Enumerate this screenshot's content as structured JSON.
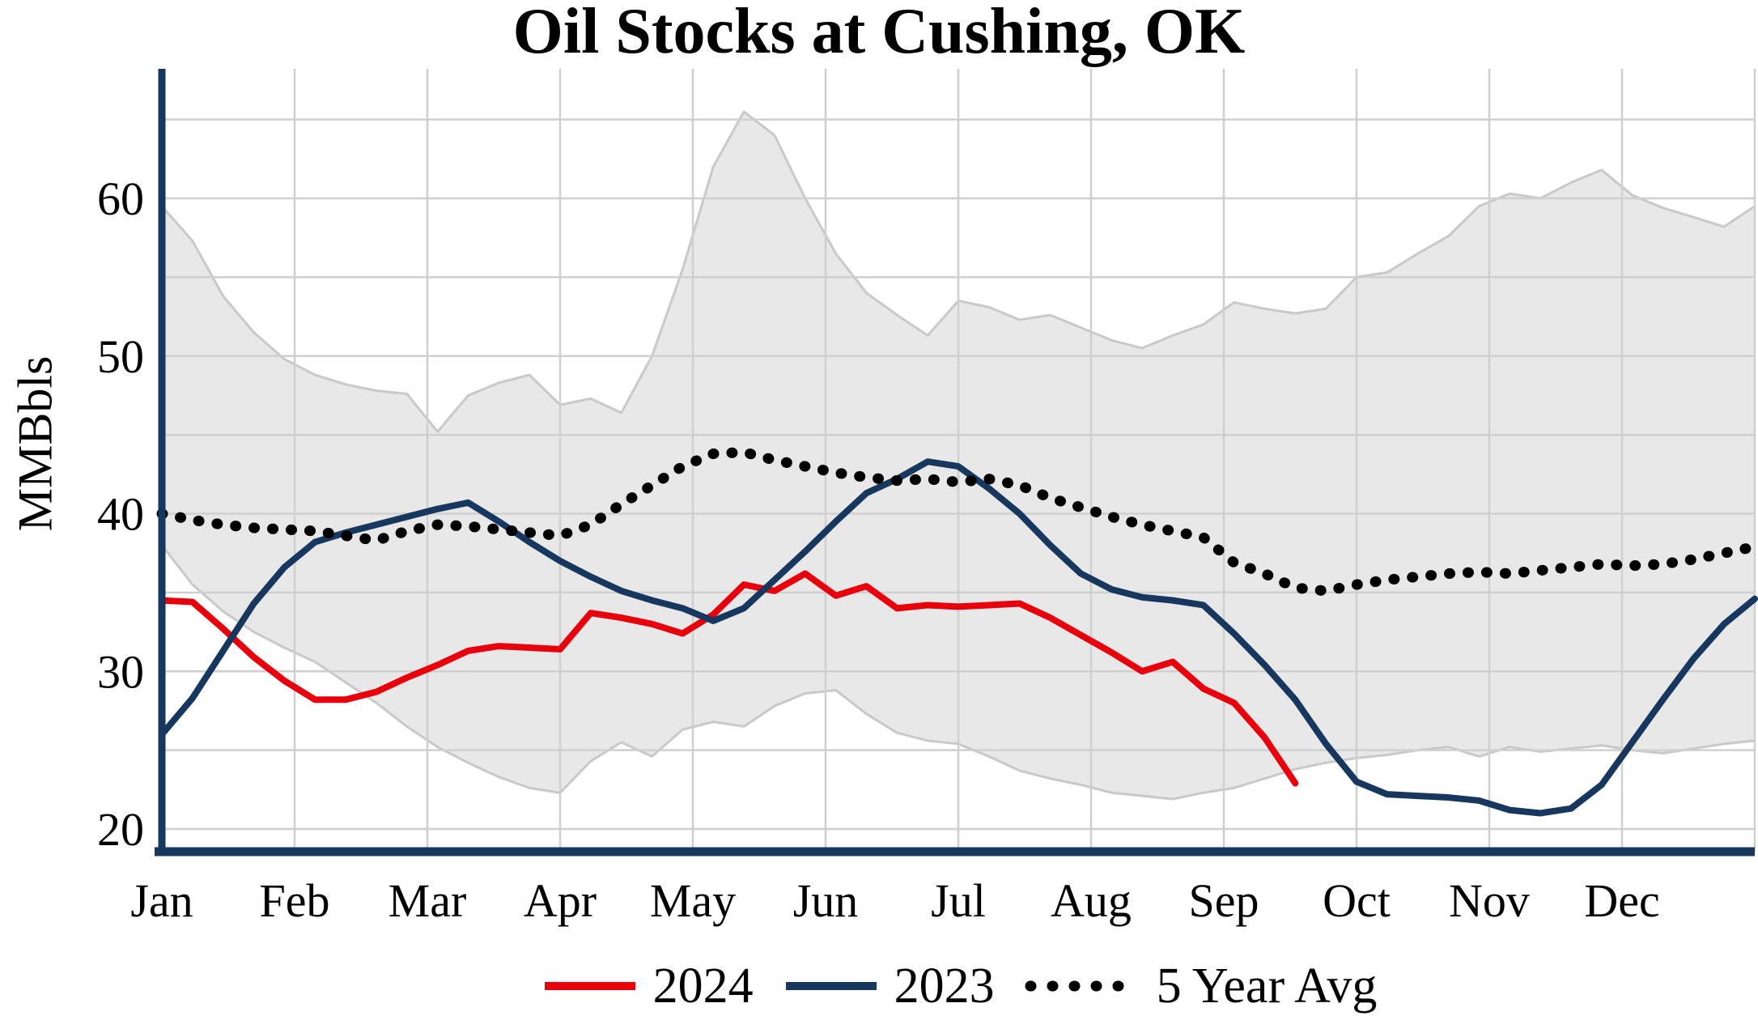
{
  "chart_data": {
    "type": "line",
    "title": "Oil Stocks at Cushing, OK",
    "ylabel": "MMBbls",
    "xlabel": "",
    "x_resolution": "weekly (52 weeks per year)",
    "x_ticklabels": [
      "Jan",
      "Feb",
      "Mar",
      "Apr",
      "May",
      "Jun",
      "Jul",
      "Aug",
      "Sep",
      "Oct",
      "Nov",
      "Dec"
    ],
    "yticks": [
      20,
      30,
      40,
      50,
      60
    ],
    "y_gridlines": [
      20,
      25,
      30,
      35,
      40,
      45,
      50,
      55,
      60,
      65
    ],
    "ylim": [
      18.5,
      68.5
    ],
    "grid": true,
    "legend_position": "bottom-center",
    "axis_color": "#17375e",
    "band": {
      "color": "#e8e8e8",
      "edge_color": "#c9c9c9",
      "upper": [
        59.5,
        57.3,
        53.8,
        51.5,
        49.8,
        48.8,
        48.2,
        47.8,
        47.6,
        45.2,
        47.5,
        48.3,
        48.8,
        46.9,
        47.3,
        46.4,
        50.0,
        55.5,
        62.0,
        65.5,
        64.0,
        60.0,
        56.5,
        54.0,
        52.6,
        51.3,
        53.5,
        53.1,
        52.3,
        52.6,
        51.8,
        51.0,
        50.5,
        51.3,
        52.0,
        53.4,
        53.0,
        52.7,
        53.0,
        55.0,
        55.3,
        56.5,
        57.6,
        59.5,
        60.3,
        60.0,
        61.0,
        61.8,
        60.2,
        59.4,
        58.8,
        58.2,
        59.5
      ],
      "lower": [
        38.0,
        35.5,
        33.8,
        32.5,
        31.5,
        30.6,
        29.3,
        28.0,
        26.5,
        25.2,
        24.2,
        23.3,
        22.6,
        22.3,
        24.3,
        25.5,
        24.6,
        26.3,
        26.8,
        26.5,
        27.8,
        28.6,
        28.8,
        27.3,
        26.1,
        25.6,
        25.4,
        24.6,
        23.7,
        23.2,
        22.8,
        22.3,
        22.1,
        21.9,
        22.3,
        22.6,
        23.2,
        23.8,
        24.2,
        24.5,
        24.7,
        25.0,
        25.2,
        24.6,
        25.2,
        24.9,
        25.1,
        25.3,
        25.0,
        24.8,
        25.1,
        25.4,
        25.6
      ]
    },
    "series": [
      {
        "name": "2024",
        "color": "#e8000d",
        "style": "solid",
        "values": [
          34.5,
          34.4,
          32.7,
          30.9,
          29.4,
          28.2,
          28.2,
          28.7,
          29.6,
          30.4,
          31.3,
          31.6,
          31.5,
          31.4,
          33.7,
          33.4,
          33.0,
          32.4,
          33.6,
          35.5,
          35.1,
          36.2,
          34.8,
          35.4,
          34.0,
          34.2,
          34.1,
          34.2,
          34.3,
          33.4,
          32.3,
          31.2,
          30.0,
          30.6,
          28.9,
          28.0,
          25.8,
          22.9
        ]
      },
      {
        "name": "2023",
        "color": "#17375e",
        "style": "solid",
        "values": [
          26.0,
          28.3,
          31.3,
          34.3,
          36.6,
          38.2,
          38.8,
          39.3,
          39.8,
          40.3,
          40.7,
          39.5,
          38.2,
          37.0,
          36.0,
          35.1,
          34.5,
          34.0,
          33.2,
          34.0,
          35.8,
          37.6,
          39.5,
          41.3,
          42.2,
          43.3,
          43.0,
          41.6,
          40.0,
          38.0,
          36.2,
          35.2,
          34.7,
          34.5,
          34.2,
          32.4,
          30.4,
          28.2,
          25.4,
          23.0,
          22.2,
          22.1,
          22.0,
          21.8,
          21.2,
          21.0,
          21.3,
          22.8,
          25.5,
          28.2,
          30.8,
          33.0,
          34.6
        ]
      },
      {
        "name": "5 Year Avg",
        "color": "#000000",
        "style": "dotted",
        "values": [
          40.0,
          39.6,
          39.3,
          39.1,
          39.0,
          38.9,
          38.6,
          38.3,
          38.9,
          39.3,
          39.2,
          39.0,
          38.8,
          38.6,
          39.3,
          40.6,
          41.8,
          43.0,
          43.8,
          43.9,
          43.4,
          43.0,
          42.6,
          42.3,
          42.1,
          42.2,
          42.0,
          42.2,
          41.8,
          41.0,
          40.4,
          39.8,
          39.3,
          38.9,
          38.5,
          36.9,
          36.2,
          35.3,
          35.1,
          35.5,
          35.8,
          36.0,
          36.2,
          36.3,
          36.2,
          36.4,
          36.6,
          36.8,
          36.7,
          36.8,
          37.1,
          37.5,
          37.9
        ]
      }
    ]
  }
}
